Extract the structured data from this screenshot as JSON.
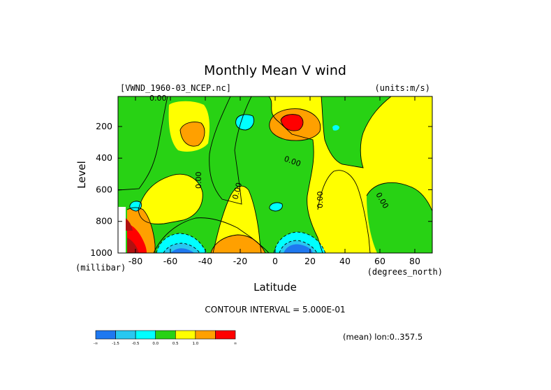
{
  "chart_data": {
    "type": "heatmap",
    "title": "Monthly Mean V wind",
    "dataset_label": "[VWND_1960-03_NCEP.nc]",
    "units_label": "(units:m/s)",
    "xlabel": "Latitude",
    "x_units": "(degrees_north)",
    "ylabel": "Level",
    "y_units": "(millibar)",
    "xlim": [
      -90,
      90
    ],
    "ylim": [
      1000,
      10
    ],
    "x_ticks": [
      -80,
      -60,
      -40,
      -20,
      0,
      20,
      40,
      60,
      80
    ],
    "x_tick_labels": [
      "-80",
      "-60",
      "-40",
      "-20",
      "0",
      "20",
      "40",
      "60",
      "80"
    ],
    "y_ticks": [
      200,
      400,
      600,
      800,
      1000
    ],
    "y_tick_labels": [
      "200",
      "400",
      "600",
      "800",
      "1000"
    ],
    "contour_interval_label": "CONTOUR INTERVAL = 5.000E-01",
    "mean_label": "(mean) lon:0..357.5",
    "contour_labels": [
      "0.00",
      "0.00",
      "0.00",
      "0.00",
      "0.00",
      "0.00"
    ],
    "colorbar": {
      "colors": [
        "#1e78f0",
        "#28c8f0",
        "#00ffff",
        "#28d214",
        "#ffff00",
        "#ffa000",
        "#ff0000"
      ],
      "tick_labels": [
        "-∞",
        "-1.5",
        "-0.5",
        "0.0",
        "0.5",
        "1.0",
        "∞"
      ],
      "bounds": [
        -1.5,
        -1.0,
        -0.5,
        0.0,
        0.5,
        1.0
      ]
    },
    "grid": false
  }
}
